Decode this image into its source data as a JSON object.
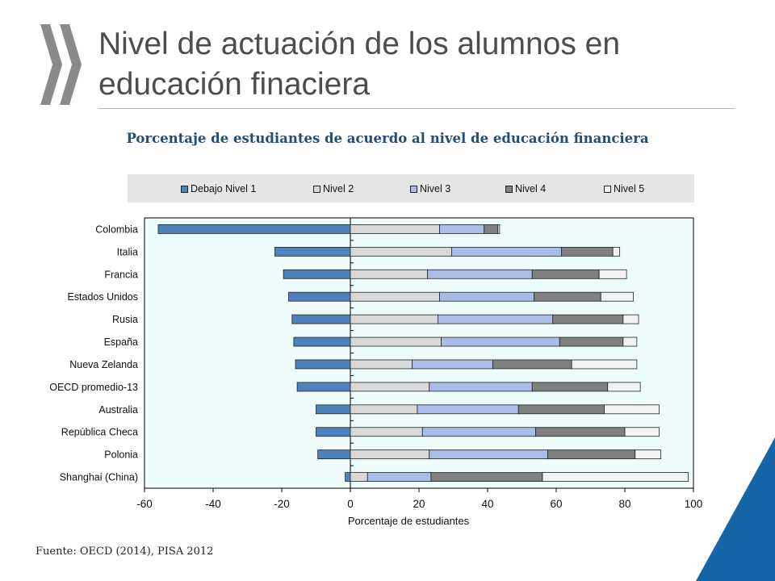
{
  "page": {
    "title": "Nivel de actuación de los alumnos en educación finaciera",
    "subtitle": "Porcentaje de estudiantes de acuerdo al nivel de educación financiera",
    "source": "Fuente: OECD (2014), PISA 2012",
    "logo_icon": "oecd-chevron-logo",
    "logo_color": "#8a8a8a",
    "corner_color": "#1565a8",
    "subtitle_color": "#1f4e79"
  },
  "chart_data": {
    "type": "bar",
    "orientation": "horizontal",
    "stacked": true,
    "xlabel": "Porcentaje de estudiantes",
    "xlim": [
      -60,
      100
    ],
    "xticks": [
      "-60",
      "-40",
      "-20",
      "0",
      "20",
      "40",
      "60",
      "80",
      "100"
    ],
    "xtick_values": [
      -60,
      -40,
      -20,
      0,
      20,
      40,
      60,
      80,
      100
    ],
    "legend_position": "top",
    "plot_background": "#eefcfc",
    "categories": [
      "Colombia",
      "Italia",
      "Francia",
      "Estados Unidos",
      "Rusia",
      "España",
      "Nueva Zelanda",
      "OECD promedio-13",
      "Australia",
      "República Checa",
      "Polonia",
      "Shanghai (China)"
    ],
    "series": [
      {
        "name": "Debajo Nivel 1",
        "color": "#4f81bd",
        "values": [
          56,
          22,
          19.5,
          18,
          17,
          16.5,
          16,
          15.5,
          10,
          10,
          9.5,
          1.5
        ]
      },
      {
        "name": "Nivel 2",
        "color": "#d9d9d9",
        "values": [
          26,
          29.5,
          22.5,
          26,
          25.5,
          26.5,
          18,
          23,
          19.5,
          21,
          23,
          5
        ]
      },
      {
        "name": "Nivel 3",
        "color": "#a9bde8",
        "values": [
          13,
          32,
          30.5,
          27.5,
          33.5,
          34.5,
          23.5,
          30,
          29.5,
          33,
          34.5,
          18.5
        ]
      },
      {
        "name": "Nivel 4",
        "color": "#808080",
        "values": [
          4,
          15,
          19.5,
          19.5,
          20.5,
          18.5,
          23,
          22,
          25,
          26,
          25.5,
          32.5
        ]
      },
      {
        "name": "Nivel 5",
        "color": "#f2f2f2",
        "values": [
          0.5,
          2,
          8,
          9.5,
          4.5,
          4,
          19,
          9.5,
          16,
          10,
          7.5,
          42.5
        ]
      }
    ]
  }
}
